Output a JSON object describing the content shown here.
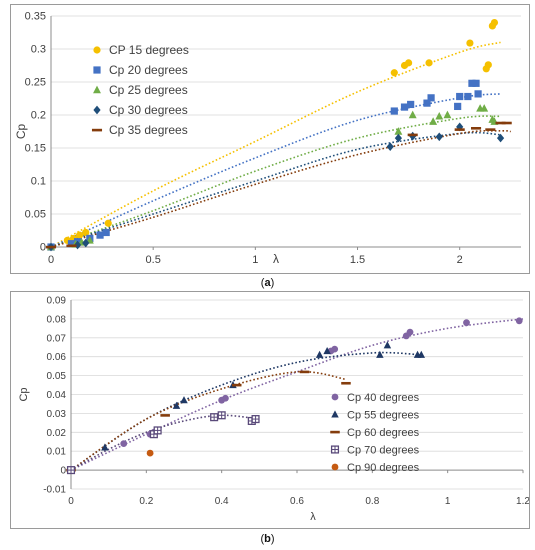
{
  "captions": {
    "a": "(a)",
    "a_letter": "a",
    "b": "(b)",
    "b_letter": "b"
  },
  "chart_data": [
    {
      "type": "scatter",
      "title": "",
      "xlabel": "λ",
      "ylabel": "Cp",
      "xlim": [
        0,
        2.3
      ],
      "ylim": [
        0,
        0.35
      ],
      "xticks": [
        "0",
        "0.5",
        "1",
        "1.5",
        "2"
      ],
      "xtick_values": [
        0,
        0.5,
        1,
        1.5,
        2
      ],
      "yticks": [
        "0",
        "0.05",
        "0.1",
        "0.15",
        "0.2",
        "0.25",
        "0.3",
        "0.35"
      ],
      "ytick_values": [
        0,
        0.05,
        0.1,
        0.15,
        0.2,
        0.25,
        0.3,
        0.35
      ],
      "grid": "horizontal",
      "legend": "top-left",
      "trendline": "dotted polynomial",
      "series": [
        {
          "name": "CP 15 degrees",
          "color": "#F5C000",
          "marker": "circle",
          "points": [
            [
              0,
              0
            ],
            [
              0.08,
              0.01
            ],
            [
              0.11,
              0.013
            ],
            [
              0.14,
              0.018
            ],
            [
              0.17,
              0.022
            ],
            [
              0.28,
              0.036
            ],
            [
              1.68,
              0.264
            ],
            [
              1.73,
              0.275
            ],
            [
              1.75,
              0.279
            ],
            [
              1.85,
              0.279
            ],
            [
              2.05,
              0.309
            ],
            [
              2.13,
              0.27
            ],
            [
              2.14,
              0.276
            ],
            [
              2.16,
              0.335
            ],
            [
              2.17,
              0.34
            ]
          ],
          "trend": [
            [
              0,
              0
            ],
            [
              0.5,
              0.085
            ],
            [
              1,
              0.16
            ],
            [
              1.5,
              0.235
            ],
            [
              2,
              0.295
            ],
            [
              2.2,
              0.31
            ]
          ]
        },
        {
          "name": "Cp 20 degrees",
          "color": "#4472C4",
          "marker": "square",
          "points": [
            [
              0,
              0
            ],
            [
              0.1,
              0.005
            ],
            [
              0.13,
              0.008
            ],
            [
              0.19,
              0.013
            ],
            [
              0.24,
              0.018
            ],
            [
              0.27,
              0.022
            ],
            [
              1.68,
              0.206
            ],
            [
              1.73,
              0.212
            ],
            [
              1.76,
              0.216
            ],
            [
              1.84,
              0.218
            ],
            [
              1.86,
              0.226
            ],
            [
              1.99,
              0.213
            ],
            [
              2.0,
              0.228
            ],
            [
              2.04,
              0.228
            ],
            [
              2.06,
              0.248
            ],
            [
              2.08,
              0.248
            ],
            [
              2.09,
              0.232
            ]
          ],
          "trend": [
            [
              0,
              0
            ],
            [
              0.5,
              0.07
            ],
            [
              1,
              0.135
            ],
            [
              1.5,
              0.192
            ],
            [
              2,
              0.226
            ],
            [
              2.2,
              0.232
            ]
          ]
        },
        {
          "name": "Cp 25 degrees",
          "color": "#70AD47",
          "marker": "triangle",
          "points": [
            [
              0,
              0
            ],
            [
              0.12,
              0.004
            ],
            [
              0.15,
              0.007
            ],
            [
              0.19,
              0.01
            ],
            [
              1.7,
              0.175
            ],
            [
              1.77,
              0.2
            ],
            [
              1.87,
              0.19
            ],
            [
              1.9,
              0.198
            ],
            [
              1.94,
              0.2
            ],
            [
              2.1,
              0.21
            ],
            [
              2.12,
              0.21
            ],
            [
              2.16,
              0.193
            ],
            [
              2.17,
              0.19
            ]
          ],
          "trend": [
            [
              0,
              0
            ],
            [
              0.5,
              0.055
            ],
            [
              1,
              0.115
            ],
            [
              1.5,
              0.165
            ],
            [
              2,
              0.195
            ],
            [
              2.2,
              0.198
            ]
          ]
        },
        {
          "name": "Cp 30 degrees",
          "color": "#1F4E79",
          "marker": "diamond",
          "points": [
            [
              0,
              0
            ],
            [
              0.13,
              0.003
            ],
            [
              0.17,
              0.006
            ],
            [
              1.66,
              0.152
            ],
            [
              1.7,
              0.165
            ],
            [
              1.77,
              0.168
            ],
            [
              1.9,
              0.167
            ],
            [
              2.0,
              0.182
            ],
            [
              2.2,
              0.165
            ]
          ],
          "trend": [
            [
              0,
              0
            ],
            [
              0.5,
              0.05
            ],
            [
              1,
              0.1
            ],
            [
              1.5,
              0.148
            ],
            [
              2,
              0.172
            ],
            [
              2.2,
              0.17
            ]
          ]
        },
        {
          "name": "Cp 35 degrees",
          "color": "#843C0C",
          "marker": "dash",
          "points": [
            [
              0,
              0
            ],
            [
              0.1,
              0.002
            ],
            [
              1.77,
              0.17
            ],
            [
              2.0,
              0.178
            ],
            [
              2.08,
              0.18
            ],
            [
              2.15,
              0.178
            ],
            [
              2.2,
              0.188
            ],
            [
              2.23,
              0.188
            ]
          ],
          "trend": [
            [
              0,
              0
            ],
            [
              0.5,
              0.045
            ],
            [
              1,
              0.095
            ],
            [
              1.5,
              0.14
            ],
            [
              2,
              0.172
            ],
            [
              2.2,
              0.176
            ],
            [
              2.25,
              0.175
            ]
          ]
        }
      ]
    },
    {
      "type": "scatter",
      "title": "",
      "xlabel": "λ",
      "ylabel": "Cp",
      "xlim": [
        0,
        1.2
      ],
      "ylim": [
        -0.01,
        0.09
      ],
      "xticks": [
        "0",
        "0.2",
        "0.4",
        "0.6",
        "0.8",
        "1",
        "1.2"
      ],
      "xtick_values": [
        0,
        0.2,
        0.4,
        0.6,
        0.8,
        1,
        1.2
      ],
      "yticks": [
        "-0.01",
        "0",
        "0.01",
        "0.02",
        "0.03",
        "0.04",
        "0.05",
        "0.06",
        "0.07",
        "0.08",
        "0.09"
      ],
      "ytick_values": [
        -0.01,
        0,
        0.01,
        0.02,
        0.03,
        0.04,
        0.05,
        0.06,
        0.07,
        0.08,
        0.09
      ],
      "grid": "horizontal",
      "legend": "right",
      "trendline": "dotted polynomial",
      "series": [
        {
          "name": "Cp 40 degrees",
          "color": "#8064A2",
          "marker": "circle",
          "points": [
            [
              0,
              0
            ],
            [
              0.14,
              0.014
            ],
            [
              0.21,
              0.019
            ],
            [
              0.22,
              0.02
            ],
            [
              0.4,
              0.037
            ],
            [
              0.41,
              0.038
            ],
            [
              0.69,
              0.063
            ],
            [
              0.7,
              0.064
            ],
            [
              0.89,
              0.071
            ],
            [
              0.9,
              0.073
            ],
            [
              1.05,
              0.078
            ],
            [
              1.19,
              0.079
            ]
          ],
          "trend": [
            [
              0,
              0
            ],
            [
              0.2,
              0.019
            ],
            [
              0.4,
              0.037
            ],
            [
              0.6,
              0.052
            ],
            [
              0.8,
              0.066
            ],
            [
              1,
              0.075
            ],
            [
              1.2,
              0.08
            ]
          ]
        },
        {
          "name": "Cp 55 degrees",
          "color": "#1F3864",
          "marker": "triangle",
          "points": [
            [
              0,
              0
            ],
            [
              0.09,
              0.012
            ],
            [
              0.28,
              0.034
            ],
            [
              0.3,
              0.037
            ],
            [
              0.43,
              0.045
            ],
            [
              0.66,
              0.061
            ],
            [
              0.68,
              0.063
            ],
            [
              0.82,
              0.061
            ],
            [
              0.84,
              0.066
            ],
            [
              0.92,
              0.061
            ],
            [
              0.93,
              0.061
            ]
          ],
          "trend": [
            [
              0,
              0
            ],
            [
              0.2,
              0.027
            ],
            [
              0.4,
              0.045
            ],
            [
              0.6,
              0.057
            ],
            [
              0.8,
              0.062
            ],
            [
              0.93,
              0.061
            ]
          ]
        },
        {
          "name": "Cp 60 degrees",
          "color": "#843C0C",
          "marker": "dash",
          "points": [
            [
              0,
              0
            ],
            [
              0.25,
              0.029
            ],
            [
              0.44,
              0.045
            ],
            [
              0.62,
              0.052
            ],
            [
              0.73,
              0.046
            ]
          ],
          "trend": [
            [
              0,
              0
            ],
            [
              0.2,
              0.027
            ],
            [
              0.4,
              0.043
            ],
            [
              0.6,
              0.052
            ],
            [
              0.73,
              0.048
            ]
          ]
        },
        {
          "name": "Cp 70 degrees",
          "color": "#5A4A7A",
          "marker": "box",
          "points": [
            [
              0,
              0
            ],
            [
              0.22,
              0.019
            ],
            [
              0.23,
              0.021
            ],
            [
              0.38,
              0.028
            ],
            [
              0.4,
              0.029
            ],
            [
              0.48,
              0.026
            ],
            [
              0.49,
              0.027
            ]
          ],
          "trend": [
            [
              0,
              0
            ],
            [
              0.1,
              0.011
            ],
            [
              0.2,
              0.02
            ],
            [
              0.3,
              0.026
            ],
            [
              0.4,
              0.029
            ],
            [
              0.5,
              0.027
            ]
          ]
        },
        {
          "name": "Cp 90 degrees",
          "color": "#C55A11",
          "marker": "circle",
          "points": [
            [
              0.21,
              0.009
            ]
          ],
          "trend": []
        }
      ]
    }
  ]
}
